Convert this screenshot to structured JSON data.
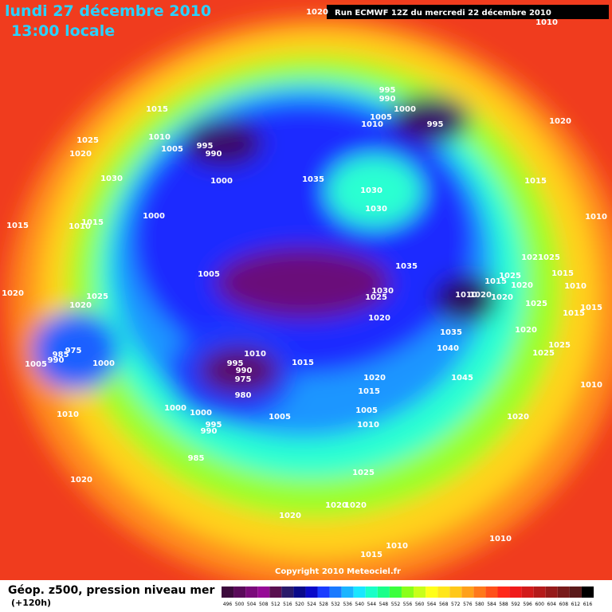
{
  "header": {
    "title_date": "lundi 27 décembre 2010",
    "title_time": "13:00 locale",
    "run_info": "Run ECMWF 12Z du mercredi 22 décembre 2010"
  },
  "map": {
    "isobar_labels": [
      "1020",
      "1010",
      "995",
      "990",
      "1000",
      "1005",
      "1010",
      "995",
      "1015",
      "1010",
      "1005",
      "995",
      "990",
      "1025",
      "1020",
      "1020",
      "1030",
      "1000",
      "1035",
      "1030",
      "1030",
      "1015",
      "1000",
      "1015",
      "1010",
      "1015",
      "1010",
      "1005",
      "1035",
      "1021",
      "1025",
      "1025",
      "1015",
      "1015",
      "1030",
      "1025",
      "1010",
      "1020",
      "1020",
      "1020",
      "1010",
      "1020",
      "1025",
      "1020",
      "1025",
      "1015",
      "1015",
      "1020",
      "1035",
      "1020",
      "1040",
      "1025",
      "1025",
      "975",
      "985",
      "990",
      "1005",
      "1000",
      "1010",
      "995",
      "990",
      "975",
      "980",
      "1015",
      "1020",
      "1045",
      "1010",
      "1015",
      "1005",
      "1000",
      "1000",
      "995",
      "990",
      "1005",
      "1010",
      "1020",
      "1010",
      "985",
      "1025",
      "1020",
      "1020",
      "1020",
      "1020",
      "1010",
      "1010",
      "1015"
    ],
    "copyright": "Copyright 2010 Meteociel.fr"
  },
  "footer": {
    "caption": "Géop. z500, pression niveau mer",
    "caption_sub": "(+120h)",
    "legend_values": [
      "496",
      "500",
      "504",
      "508",
      "512",
      "516",
      "520",
      "524",
      "528",
      "532",
      "536",
      "540",
      "544",
      "548",
      "552",
      "556",
      "560",
      "564",
      "568",
      "572",
      "576",
      "580",
      "584",
      "588",
      "592",
      "596",
      "600",
      "604",
      "608",
      "612",
      "616"
    ]
  }
}
